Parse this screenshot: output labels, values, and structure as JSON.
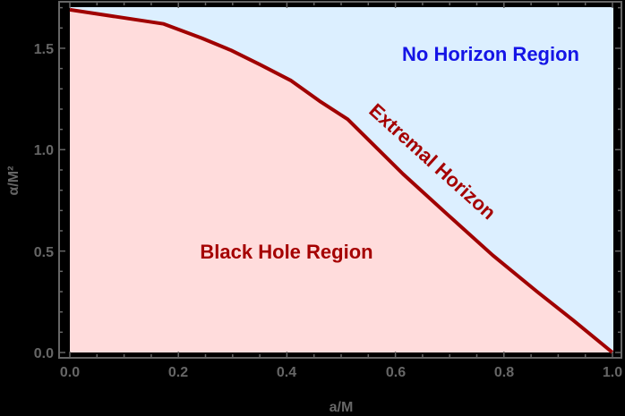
{
  "chart_data": {
    "type": "area",
    "title": "",
    "xlabel": "a/M",
    "ylabel": "α/M²",
    "xlim": [
      0,
      1.0
    ],
    "ylim": [
      0,
      1.7
    ],
    "grid": false,
    "x_ticks": [
      "0.0",
      "0.2",
      "0.4",
      "0.6",
      "0.8",
      "1.0"
    ],
    "y_ticks": [
      "0.0",
      "0.5",
      "1.0",
      "1.5"
    ],
    "series": [
      {
        "name": "Extremal Horizon",
        "color": "#a00000",
        "x": [
          0.0,
          0.173,
          0.243,
          0.297,
          0.35,
          0.408,
          0.46,
          0.512,
          0.614,
          0.696,
          0.779,
          0.861,
          0.927,
          1.0
        ],
        "y": [
          1.69,
          1.62,
          1.55,
          1.49,
          1.42,
          1.34,
          1.24,
          1.15,
          0.88,
          0.68,
          0.48,
          0.3,
          0.16,
          0.0
        ]
      }
    ],
    "regions": [
      {
        "name": "Black Hole Region",
        "position": "below curve",
        "fill": "#ffdcdc",
        "label_color": "#a50000"
      },
      {
        "name": "No Horizon Region",
        "position": "above curve",
        "fill": "#dcefff",
        "label_color": "#1414e6"
      }
    ],
    "annotations": [
      {
        "text": "No Horizon Region",
        "x": 0.79,
        "y": 1.48
      },
      {
        "text": "Black Hole Region",
        "x": 0.39,
        "y": 0.5
      },
      {
        "text": "Extremal Horizon",
        "x": 0.65,
        "y": 0.9,
        "rotation": 42
      }
    ]
  },
  "labels": {
    "xlabel": "a/M",
    "ylabel": "α/M²",
    "no_horizon": "No Horizon Region",
    "black_hole": "Black Hole Region",
    "extremal": "Extremal Horizon",
    "x_ticks": [
      "0.0",
      "0.2",
      "0.4",
      "0.6",
      "0.8",
      "1.0"
    ],
    "y_ticks": [
      "0.0",
      "0.5",
      "1.0",
      "1.5"
    ]
  },
  "colors": {
    "background": "#000000",
    "frame": "#666666",
    "below_fill": "#ffdcdc",
    "above_fill": "#dcefff",
    "curve": "#a00000"
  }
}
